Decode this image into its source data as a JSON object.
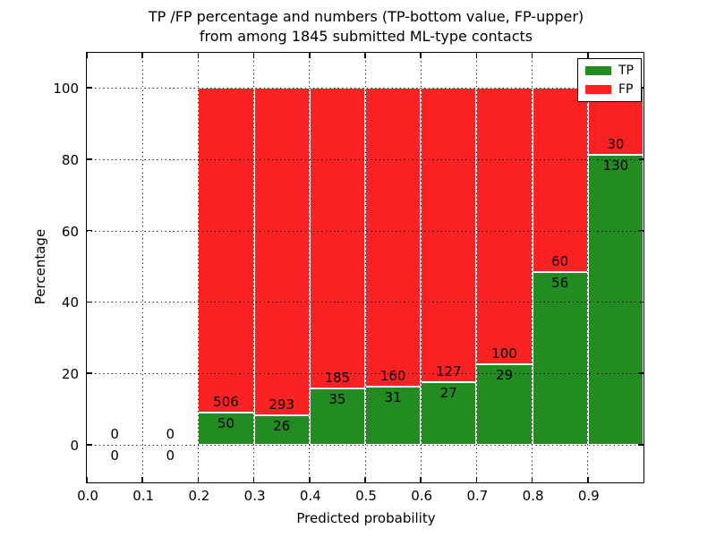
{
  "figure": {
    "title_line1": "TP /FP percentage and numbers (TP-bottom value, FP-upper)",
    "title_line2": "from among 1845 submitted ML-type contacts"
  },
  "chart_data": {
    "type": "bar",
    "subtype": "percentage-stacked",
    "title": "TP /FP percentage and numbers (TP-bottom value, FP-upper) from among 1845 submitted ML-type contacts",
    "title_line1": "TP /FP percentage and numbers (TP-bottom value, FP-upper)",
    "title_line2": "from among 1845 submitted ML-type contacts",
    "xlabel": "Predicted probability",
    "ylabel": "Percentage",
    "xlim": [
      0.0,
      1.0
    ],
    "ylim": [
      -11,
      110
    ],
    "x_tick_labels": [
      "0.0",
      "0.1",
      "0.2",
      "0.3",
      "0.4",
      "0.5",
      "0.6",
      "0.7",
      "0.8",
      "0.9"
    ],
    "y_tick_values": [
      0,
      20,
      40,
      60,
      80,
      100
    ],
    "grid": "dotted",
    "total_contacts": 1845,
    "colors": {
      "tp": "#228b22",
      "fp": "#fa2222"
    },
    "legend": {
      "position": "upper right",
      "entries": [
        {
          "label": "TP",
          "color": "#228b22"
        },
        {
          "label": "FP",
          "color": "#fa2222"
        }
      ]
    },
    "bins": [
      {
        "bin_start": 0.0,
        "bin_end": 0.1,
        "tp": 0,
        "fp": 0
      },
      {
        "bin_start": 0.1,
        "bin_end": 0.2,
        "tp": 0,
        "fp": 0
      },
      {
        "bin_start": 0.2,
        "bin_end": 0.3,
        "tp": 50,
        "fp": 506
      },
      {
        "bin_start": 0.3,
        "bin_end": 0.4,
        "tp": 26,
        "fp": 293
      },
      {
        "bin_start": 0.4,
        "bin_end": 0.5,
        "tp": 35,
        "fp": 185
      },
      {
        "bin_start": 0.5,
        "bin_end": 0.6,
        "tp": 31,
        "fp": 160
      },
      {
        "bin_start": 0.6,
        "bin_end": 0.7,
        "tp": 27,
        "fp": 127
      },
      {
        "bin_start": 0.7,
        "bin_end": 0.8,
        "tp": 29,
        "fp": 100
      },
      {
        "bin_start": 0.8,
        "bin_end": 0.9,
        "tp": 56,
        "fp": 60
      },
      {
        "bin_start": 0.9,
        "bin_end": 1.0,
        "tp": 130,
        "fp": 30
      }
    ]
  }
}
